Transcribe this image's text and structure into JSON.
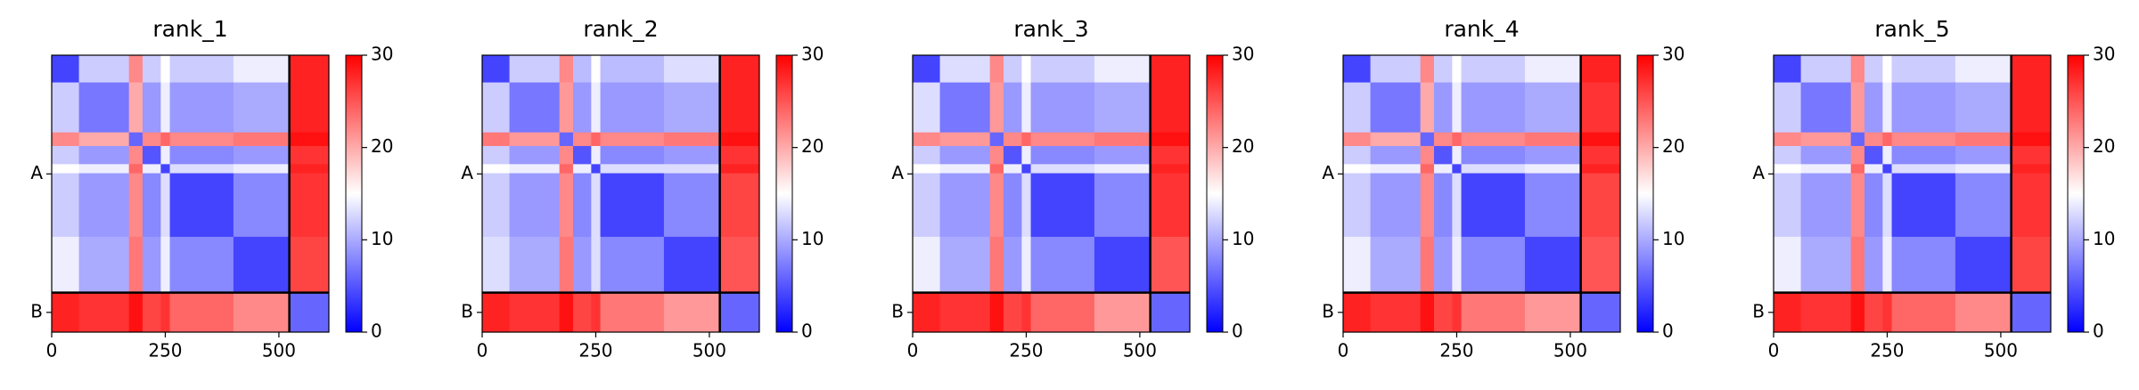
{
  "chart_data": [
    {
      "type": "heatmap",
      "title": "rank_1",
      "cmap": "bwr",
      "x_edges": [
        0,
        60,
        170,
        200,
        240,
        260,
        400,
        523,
        610
      ],
      "y_edges": [
        0,
        60,
        170,
        200,
        240,
        260,
        400,
        523,
        610
      ],
      "values": [
        [
          4,
          12,
          22,
          12,
          15,
          12,
          14,
          28
        ],
        [
          12,
          7,
          20,
          9,
          14,
          9,
          10,
          28
        ],
        [
          22,
          20,
          6,
          22,
          24,
          22,
          23,
          29
        ],
        [
          12,
          9,
          22,
          5,
          14,
          8,
          9,
          27
        ],
        [
          15,
          14,
          24,
          14,
          4,
          13,
          14,
          28
        ],
        [
          12,
          9,
          22,
          8,
          13,
          4,
          8,
          27
        ],
        [
          14,
          10,
          23,
          9,
          14,
          8,
          4,
          26
        ],
        [
          28,
          27,
          29,
          26,
          27,
          24,
          22,
          6
        ]
      ],
      "xlim": [
        0,
        610
      ],
      "ylim": [
        0,
        610
      ],
      "y_inverted": true,
      "xticks": [
        0,
        250,
        500
      ],
      "yticks": [
        {
          "value": 261.5,
          "label": "A"
        },
        {
          "value": 566.5,
          "label": "B"
        }
      ],
      "boundaries": [
        523
      ],
      "colorbar": {
        "lim": [
          0,
          30
        ],
        "ticks": [
          0,
          10,
          20,
          30
        ]
      }
    },
    {
      "type": "heatmap",
      "title": "rank_2",
      "cmap": "bwr",
      "x_edges": [
        0,
        60,
        170,
        200,
        240,
        260,
        400,
        523,
        610
      ],
      "y_edges": [
        0,
        60,
        170,
        200,
        240,
        260,
        400,
        523,
        610
      ],
      "values": [
        [
          4,
          12,
          22,
          11,
          15,
          11,
          13,
          28
        ],
        [
          12,
          7,
          21,
          9,
          14,
          9,
          10,
          28
        ],
        [
          23,
          21,
          6,
          22,
          24,
          22,
          23,
          29
        ],
        [
          12,
          9,
          22,
          5,
          14,
          8,
          9,
          27
        ],
        [
          15,
          14,
          24,
          14,
          4,
          13,
          13,
          28
        ],
        [
          12,
          9,
          22,
          8,
          13,
          4,
          8,
          26
        ],
        [
          13,
          10,
          23,
          9,
          13,
          8,
          4,
          25
        ],
        [
          28,
          27,
          29,
          26,
          27,
          23,
          21,
          6
        ]
      ],
      "xlim": [
        0,
        610
      ],
      "ylim": [
        0,
        610
      ],
      "y_inverted": true,
      "xticks": [
        0,
        250,
        500
      ],
      "yticks": [
        {
          "value": 261.5,
          "label": "A"
        },
        {
          "value": 566.5,
          "label": "B"
        }
      ],
      "boundaries": [
        523
      ],
      "colorbar": {
        "lim": [
          0,
          30
        ],
        "ticks": [
          0,
          10,
          20,
          30
        ]
      }
    },
    {
      "type": "heatmap",
      "title": "rank_3",
      "cmap": "bwr",
      "x_edges": [
        0,
        60,
        170,
        200,
        240,
        260,
        400,
        523,
        610
      ],
      "y_edges": [
        0,
        60,
        170,
        200,
        240,
        260,
        400,
        523,
        610
      ],
      "values": [
        [
          4,
          13,
          22,
          12,
          15,
          12,
          14,
          28
        ],
        [
          13,
          7,
          21,
          9,
          14,
          9,
          10,
          28
        ],
        [
          22,
          21,
          6,
          22,
          24,
          22,
          23,
          29
        ],
        [
          12,
          9,
          22,
          5,
          14,
          8,
          9,
          27
        ],
        [
          15,
          14,
          24,
          14,
          4,
          13,
          14,
          28
        ],
        [
          12,
          9,
          22,
          8,
          13,
          4,
          8,
          27
        ],
        [
          14,
          10,
          23,
          9,
          14,
          8,
          4,
          25
        ],
        [
          28,
          27,
          29,
          26,
          27,
          24,
          21,
          6
        ]
      ],
      "xlim": [
        0,
        610
      ],
      "ylim": [
        0,
        610
      ],
      "y_inverted": true,
      "xticks": [
        0,
        250,
        500
      ],
      "yticks": [
        {
          "value": 261.5,
          "label": "A"
        },
        {
          "value": 566.5,
          "label": "B"
        }
      ],
      "boundaries": [
        523
      ],
      "colorbar": {
        "lim": [
          0,
          30
        ],
        "ticks": [
          0,
          10,
          20,
          30
        ]
      }
    },
    {
      "type": "heatmap",
      "title": "rank_4",
      "cmap": "bwr",
      "x_edges": [
        0,
        60,
        170,
        200,
        240,
        260,
        400,
        523,
        610
      ],
      "y_edges": [
        0,
        60,
        170,
        200,
        240,
        260,
        400,
        523,
        610
      ],
      "values": [
        [
          4,
          12,
          22,
          12,
          15,
          12,
          14,
          28
        ],
        [
          12,
          7,
          20,
          9,
          14,
          9,
          10,
          27
        ],
        [
          22,
          20,
          6,
          22,
          24,
          22,
          23,
          29
        ],
        [
          12,
          9,
          22,
          5,
          14,
          8,
          9,
          27
        ],
        [
          15,
          14,
          24,
          14,
          4,
          13,
          14,
          28
        ],
        [
          12,
          9,
          22,
          8,
          13,
          4,
          8,
          26
        ],
        [
          14,
          10,
          23,
          9,
          14,
          8,
          4,
          25
        ],
        [
          28,
          27,
          29,
          26,
          27,
          23,
          21,
          6
        ]
      ],
      "xlim": [
        0,
        610
      ],
      "ylim": [
        0,
        610
      ],
      "y_inverted": true,
      "xticks": [
        0,
        250,
        500
      ],
      "yticks": [
        {
          "value": 261.5,
          "label": "A"
        },
        {
          "value": 566.5,
          "label": "B"
        }
      ],
      "boundaries": [
        523
      ],
      "colorbar": {
        "lim": [
          0,
          30
        ],
        "ticks": [
          0,
          10,
          20,
          30
        ]
      }
    },
    {
      "type": "heatmap",
      "title": "rank_5",
      "cmap": "bwr",
      "x_edges": [
        0,
        60,
        170,
        200,
        240,
        260,
        400,
        523,
        610
      ],
      "y_edges": [
        0,
        60,
        170,
        200,
        240,
        260,
        400,
        523,
        610
      ],
      "values": [
        [
          4,
          12,
          22,
          12,
          15,
          12,
          14,
          28
        ],
        [
          12,
          7,
          21,
          9,
          14,
          9,
          10,
          28
        ],
        [
          22,
          21,
          6,
          22,
          24,
          22,
          23,
          29
        ],
        [
          12,
          9,
          22,
          5,
          14,
          8,
          9,
          27
        ],
        [
          15,
          14,
          24,
          14,
          4,
          13,
          14,
          28
        ],
        [
          12,
          9,
          22,
          8,
          13,
          4,
          8,
          27
        ],
        [
          14,
          10,
          23,
          9,
          14,
          8,
          4,
          26
        ],
        [
          28,
          27,
          29,
          26,
          27,
          24,
          22,
          6
        ]
      ],
      "xlim": [
        0,
        610
      ],
      "ylim": [
        0,
        610
      ],
      "y_inverted": true,
      "xticks": [
        0,
        250,
        500
      ],
      "yticks": [
        {
          "value": 261.5,
          "label": "A"
        },
        {
          "value": 566.5,
          "label": "B"
        }
      ],
      "boundaries": [
        523
      ],
      "colorbar": {
        "lim": [
          0,
          30
        ],
        "ticks": [
          0,
          10,
          20,
          30
        ]
      }
    }
  ]
}
